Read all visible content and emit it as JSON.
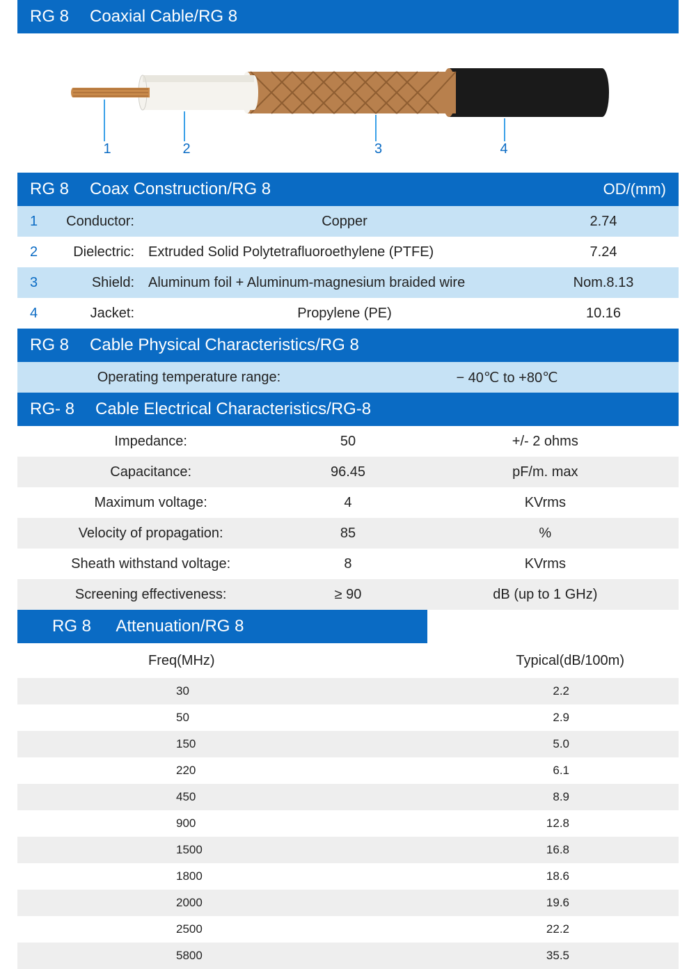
{
  "colors": {
    "header_bg": "#0a6bc4",
    "header_text": "#ffffff",
    "row_alt0": "#c6e2f5",
    "row_alt1": "#ffffff",
    "row_grey": "#eeeeee",
    "number_color": "#0a6bc4",
    "text_color": "#222222",
    "copper": "#c98a4a",
    "dielectric_fill": "#f5f3ee",
    "braid": "#b8804d",
    "jacket": "#1a1a1a"
  },
  "header1": {
    "prefix": "RG 8",
    "title": "Coaxial Cable/RG 8"
  },
  "diagram": {
    "labels": [
      "1",
      "2",
      "3",
      "4"
    ],
    "label_positions_pct": [
      13,
      25,
      54,
      73
    ]
  },
  "construction": {
    "header_prefix": "RG 8",
    "header_title": "Coax Construction/RG 8",
    "header_right": "OD/(mm)",
    "rows": [
      {
        "num": "1",
        "label": "Conductor:",
        "value": "Copper",
        "od": "2.74"
      },
      {
        "num": "2",
        "label": "Dielectric:",
        "value": "Extruded Solid Polytetrafluoroethylene (PTFE)",
        "od": "7.24"
      },
      {
        "num": "3",
        "label": "Shield:",
        "value": "Aluminum foil + Aluminum-magnesium braided wire",
        "od": "Nom.8.13"
      },
      {
        "num": "4",
        "label": "Jacket:",
        "value": "Propylene (PE)",
        "od": "10.16"
      }
    ]
  },
  "physical": {
    "header_prefix": "RG  8",
    "header_title": "Cable Physical Characteristics/RG 8",
    "row_label": "Operating temperature range:",
    "row_value": "− 40℃ to +80℃"
  },
  "electrical": {
    "header_prefix": "RG- 8",
    "header_title": "Cable Electrical Characteristics/RG-8",
    "rows": [
      {
        "label": "Impedance:",
        "value": "50",
        "unit": "+/- 2 ohms"
      },
      {
        "label": "Capacitance:",
        "value": "96.45",
        "unit": "pF/m. max"
      },
      {
        "label": "Maximum voltage:",
        "value": "4",
        "unit": "KVrms"
      },
      {
        "label": "Velocity of propagation:",
        "value": "85",
        "unit": "%"
      },
      {
        "label": "Sheath withstand voltage:",
        "value": "8",
        "unit": "KVrms"
      },
      {
        "label": "Screening effectiveness:",
        "value": "≥ 90",
        "unit": "dB (up to 1 GHz)"
      }
    ]
  },
  "attenuation": {
    "header_prefix": "RG 8",
    "header_title": "Attenuation/RG 8",
    "columns": [
      "Freq(MHz)",
      "Typical(dB/100m)"
    ],
    "rows": [
      {
        "freq": "30",
        "val": "2.2"
      },
      {
        "freq": "50",
        "val": "2.9"
      },
      {
        "freq": "150",
        "val": "5.0"
      },
      {
        "freq": "220",
        "val": "6.1"
      },
      {
        "freq": "450",
        "val": "8.9"
      },
      {
        "freq": "900",
        "val": "12.8"
      },
      {
        "freq": "1500",
        "val": "16.8"
      },
      {
        "freq": "1800",
        "val": "18.6"
      },
      {
        "freq": "2000",
        "val": "19.6"
      },
      {
        "freq": "2500",
        "val": "22.2"
      },
      {
        "freq": "5800",
        "val": "35.5"
      }
    ]
  }
}
